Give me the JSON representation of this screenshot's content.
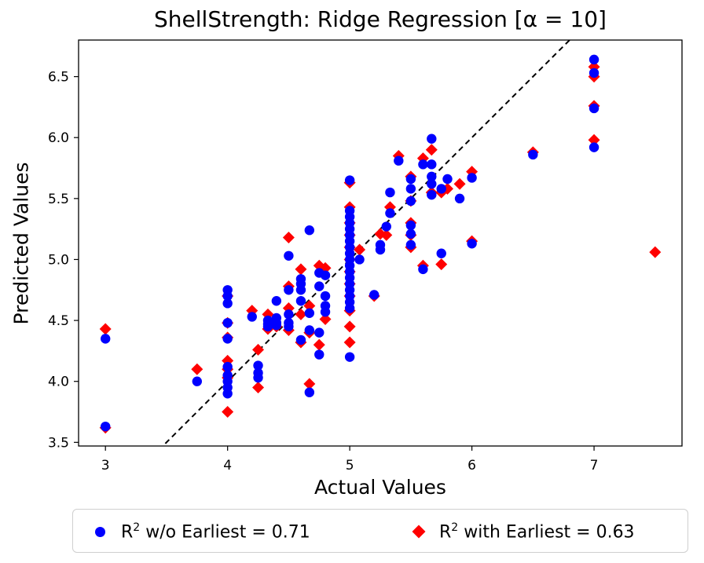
{
  "chart_data": {
    "type": "scatter",
    "title": "ShellStrength: Ridge Regression [α = 10]",
    "xlabel": "Actual Values",
    "ylabel": "Predicted Values",
    "xlim": [
      2.78,
      7.72
    ],
    "ylim": [
      3.47,
      6.8
    ],
    "xticks": [
      3,
      4,
      5,
      6,
      7
    ],
    "yticks": [
      3.5,
      4.0,
      4.5,
      5.0,
      5.5,
      6.0,
      6.5
    ],
    "reference_line": {
      "type": "y=x",
      "style": "dashed",
      "color": "#000000"
    },
    "legend_position": "bottom, outside plot",
    "series": [
      {
        "name": "R² w/o Earliest = 0.71",
        "legend_prefix": "R",
        "legend_sup": "2",
        "legend_suffix": " w/o Earliest = 0.71",
        "marker": "circle",
        "color": "#0000ff",
        "points": [
          [
            3,
            4.35
          ],
          [
            3,
            3.63
          ],
          [
            3.75,
            4.0
          ],
          [
            4,
            4.75
          ],
          [
            4,
            4.7
          ],
          [
            4,
            4.64
          ],
          [
            4,
            4.48
          ],
          [
            4,
            4.35
          ],
          [
            4,
            4.12
          ],
          [
            4,
            4.05
          ],
          [
            4,
            4.0
          ],
          [
            4,
            3.95
          ],
          [
            4,
            3.9
          ],
          [
            4.2,
            4.53
          ],
          [
            4.25,
            4.13
          ],
          [
            4.25,
            4.07
          ],
          [
            4.25,
            4.03
          ],
          [
            4.33,
            4.5
          ],
          [
            4.33,
            4.47
          ],
          [
            4.33,
            4.45
          ],
          [
            4.4,
            4.66
          ],
          [
            4.4,
            4.52
          ],
          [
            4.4,
            4.48
          ],
          [
            4.4,
            4.46
          ],
          [
            4.5,
            5.03
          ],
          [
            4.5,
            4.75
          ],
          [
            4.5,
            4.55
          ],
          [
            4.5,
            4.48
          ],
          [
            4.5,
            4.45
          ],
          [
            4.6,
            4.84
          ],
          [
            4.6,
            4.8
          ],
          [
            4.6,
            4.75
          ],
          [
            4.6,
            4.66
          ],
          [
            4.6,
            4.34
          ],
          [
            4.67,
            5.24
          ],
          [
            4.67,
            4.56
          ],
          [
            4.67,
            4.42
          ],
          [
            4.67,
            3.91
          ],
          [
            4.75,
            4.89
          ],
          [
            4.75,
            4.78
          ],
          [
            4.75,
            4.4
          ],
          [
            4.75,
            4.22
          ],
          [
            4.8,
            4.87
          ],
          [
            4.8,
            4.7
          ],
          [
            4.8,
            4.62
          ],
          [
            4.8,
            4.57
          ],
          [
            5,
            5.65
          ],
          [
            5,
            5.4
          ],
          [
            5,
            5.35
          ],
          [
            5,
            5.3
          ],
          [
            5,
            5.25
          ],
          [
            5,
            5.2
          ],
          [
            5,
            5.15
          ],
          [
            5,
            5.1
          ],
          [
            5,
            5.05
          ],
          [
            5,
            5.0
          ],
          [
            5,
            4.95
          ],
          [
            5,
            4.9
          ],
          [
            5,
            4.85
          ],
          [
            5,
            4.8
          ],
          [
            5,
            4.75
          ],
          [
            5,
            4.7
          ],
          [
            5,
            4.65
          ],
          [
            5,
            4.6
          ],
          [
            5,
            4.2
          ],
          [
            5.08,
            5.0
          ],
          [
            5.2,
            4.71
          ],
          [
            5.25,
            5.12
          ],
          [
            5.25,
            5.08
          ],
          [
            5.3,
            5.27
          ],
          [
            5.33,
            5.55
          ],
          [
            5.33,
            5.38
          ],
          [
            5.4,
            5.81
          ],
          [
            5.5,
            5.66
          ],
          [
            5.5,
            5.58
          ],
          [
            5.5,
            5.48
          ],
          [
            5.5,
            5.28
          ],
          [
            5.5,
            5.21
          ],
          [
            5.5,
            5.12
          ],
          [
            5.6,
            5.78
          ],
          [
            5.6,
            4.92
          ],
          [
            5.67,
            5.99
          ],
          [
            5.67,
            5.78
          ],
          [
            5.67,
            5.68
          ],
          [
            5.67,
            5.62
          ],
          [
            5.67,
            5.53
          ],
          [
            5.75,
            5.58
          ],
          [
            5.75,
            5.05
          ],
          [
            5.8,
            5.66
          ],
          [
            5.9,
            5.5
          ],
          [
            6,
            5.67
          ],
          [
            6,
            5.13
          ],
          [
            6.5,
            5.86
          ],
          [
            7,
            6.64
          ],
          [
            7,
            6.53
          ],
          [
            7,
            6.24
          ],
          [
            7,
            5.92
          ]
        ]
      },
      {
        "name": "R² with Earliest = 0.63",
        "legend_prefix": "R",
        "legend_sup": "2",
        "legend_suffix": " with Earliest = 0.63",
        "marker": "diamond",
        "color": "#ff0000",
        "points": [
          [
            3,
            4.43
          ],
          [
            3,
            3.62
          ],
          [
            3.75,
            4.1
          ],
          [
            4,
            4.7
          ],
          [
            4,
            4.48
          ],
          [
            4,
            4.36
          ],
          [
            4,
            4.17
          ],
          [
            4,
            4.1
          ],
          [
            4,
            4.03
          ],
          [
            4,
            3.75
          ],
          [
            4.2,
            4.58
          ],
          [
            4.25,
            4.26
          ],
          [
            4.25,
            3.95
          ],
          [
            4.33,
            4.55
          ],
          [
            4.33,
            4.43
          ],
          [
            4.4,
            4.45
          ],
          [
            4.5,
            5.18
          ],
          [
            4.5,
            4.78
          ],
          [
            4.5,
            4.6
          ],
          [
            4.5,
            4.42
          ],
          [
            4.6,
            4.92
          ],
          [
            4.6,
            4.55
          ],
          [
            4.6,
            4.32
          ],
          [
            4.67,
            4.62
          ],
          [
            4.67,
            4.4
          ],
          [
            4.67,
            3.98
          ],
          [
            4.75,
            4.95
          ],
          [
            4.75,
            4.3
          ],
          [
            4.8,
            4.93
          ],
          [
            4.8,
            4.51
          ],
          [
            5,
            5.63
          ],
          [
            5,
            5.43
          ],
          [
            5,
            5.3
          ],
          [
            5,
            5.2
          ],
          [
            5,
            5.1
          ],
          [
            5,
            5.0
          ],
          [
            5,
            4.9
          ],
          [
            5,
            4.8
          ],
          [
            5,
            4.7
          ],
          [
            5,
            4.58
          ],
          [
            5,
            4.45
          ],
          [
            5,
            4.32
          ],
          [
            5.08,
            5.08
          ],
          [
            5.2,
            4.7
          ],
          [
            5.25,
            5.21
          ],
          [
            5.3,
            5.2
          ],
          [
            5.33,
            5.43
          ],
          [
            5.4,
            5.85
          ],
          [
            5.5,
            5.68
          ],
          [
            5.5,
            5.48
          ],
          [
            5.5,
            5.3
          ],
          [
            5.5,
            5.2
          ],
          [
            5.5,
            5.1
          ],
          [
            5.6,
            5.83
          ],
          [
            5.6,
            4.95
          ],
          [
            5.67,
            5.9
          ],
          [
            5.67,
            5.55
          ],
          [
            5.75,
            5.55
          ],
          [
            5.75,
            4.96
          ],
          [
            5.8,
            5.58
          ],
          [
            5.9,
            5.62
          ],
          [
            6,
            5.72
          ],
          [
            6,
            5.15
          ],
          [
            6.5,
            5.88
          ],
          [
            7,
            6.58
          ],
          [
            7,
            6.5
          ],
          [
            7,
            6.26
          ],
          [
            7,
            5.98
          ],
          [
            7.5,
            5.06
          ]
        ]
      }
    ]
  }
}
